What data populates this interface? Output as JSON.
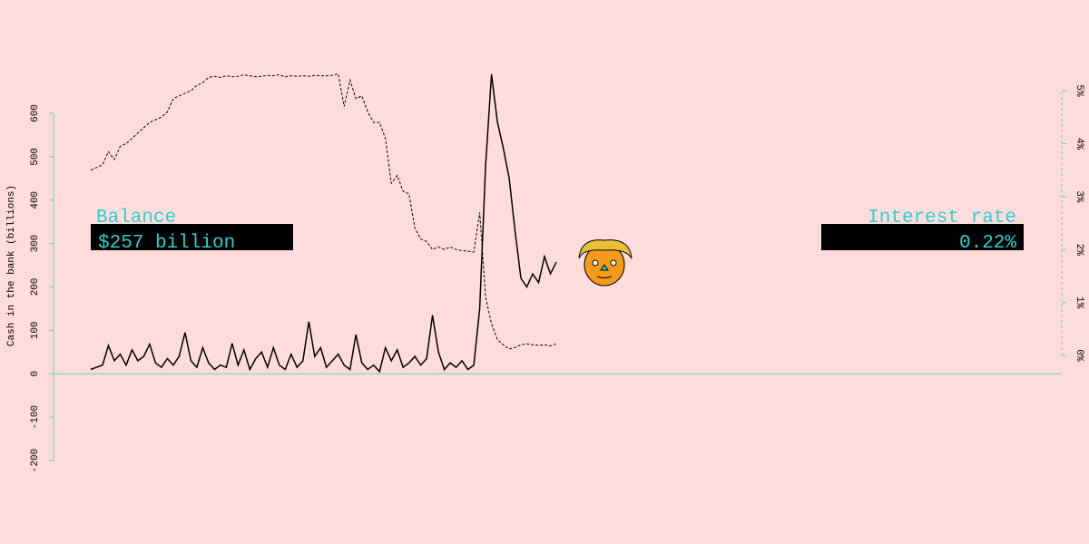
{
  "chart_data": {
    "type": "line",
    "y_label": "Cash in the bank (billions)",
    "categories": [
      null,
      null,
      null,
      null,
      null,
      null,
      null,
      null,
      null,
      null,
      null,
      null,
      null,
      null,
      null,
      null,
      null,
      null,
      null,
      null,
      null,
      null,
      null,
      null,
      null,
      null,
      null,
      null,
      null,
      null,
      null,
      null,
      null,
      null,
      null,
      null,
      null,
      null,
      null,
      null,
      null,
      null,
      null,
      null,
      null,
      null,
      null,
      null,
      null,
      null,
      null,
      null,
      null,
      null,
      null,
      null,
      null,
      null,
      null,
      null,
      null,
      null,
      null,
      null,
      null,
      null,
      null,
      null,
      null,
      null,
      null,
      null,
      null,
      null,
      null,
      null,
      null,
      null,
      null,
      null
    ],
    "series": [
      {
        "name": "Balance",
        "color": "#000000",
        "style": "solid",
        "values": [
          10,
          15,
          20,
          65,
          30,
          45,
          20,
          55,
          30,
          40,
          68,
          25,
          15,
          35,
          20,
          40,
          95,
          30,
          15,
          60,
          25,
          10,
          20,
          15,
          70,
          20,
          55,
          10,
          35,
          50,
          15,
          60,
          20,
          10,
          45,
          15,
          30,
          120,
          40,
          60,
          15,
          30,
          45,
          20,
          10,
          90,
          25,
          10,
          20,
          5,
          60,
          30,
          55,
          15,
          25,
          40,
          20,
          35,
          135,
          50,
          10,
          25,
          15,
          30,
          10,
          20,
          150,
          480,
          690,
          580,
          520,
          450,
          330,
          220,
          200,
          230,
          210,
          270,
          230,
          257
        ]
      },
      {
        "name": "Interest rate",
        "color": "#000000",
        "style": "dashed",
        "axis": "y2",
        "values": [
          3.5,
          3.55,
          3.6,
          3.85,
          3.7,
          3.95,
          4.0,
          4.1,
          4.2,
          4.3,
          4.4,
          4.45,
          4.5,
          4.6,
          4.85,
          4.9,
          4.95,
          5.0,
          5.1,
          5.15,
          5.25,
          5.27,
          5.25,
          5.28,
          5.26,
          5.27,
          5.3,
          5.28,
          5.26,
          5.27,
          5.29,
          5.28,
          5.3,
          5.26,
          5.28,
          5.27,
          5.28,
          5.27,
          5.29,
          5.28,
          5.28,
          5.29,
          5.32,
          4.7,
          5.2,
          4.85,
          4.9,
          4.6,
          4.4,
          4.4,
          4.1,
          3.25,
          3.4,
          3.1,
          3.05,
          2.4,
          2.2,
          2.15,
          2.0,
          2.05,
          2.0,
          2.05,
          2.0,
          1.98,
          1.97,
          1.95,
          2.7,
          1.1,
          0.6,
          0.3,
          0.2,
          0.12,
          0.15,
          0.2,
          0.22,
          0.2,
          0.19,
          0.2,
          0.18,
          0.22
        ]
      }
    ],
    "ylim": [
      -200,
      600
    ],
    "yticks": [
      -200,
      -100,
      0,
      100,
      200,
      300,
      400,
      500,
      600
    ],
    "y2lim": [
      0,
      5
    ],
    "y2ticks": [
      {
        "value": 0,
        "label": "0%"
      },
      {
        "value": 1,
        "label": "1%"
      },
      {
        "value": 2,
        "label": "2%"
      },
      {
        "value": 3,
        "label": "3%"
      },
      {
        "value": 4,
        "label": "4%"
      },
      {
        "value": 5,
        "label": "5%"
      }
    ],
    "axis_color": "#5fd3d3",
    "panels": [
      {
        "title": "Balance",
        "value": "$257 billion"
      },
      {
        "title": "Interest rate",
        "value": "0.22%"
      }
    ]
  }
}
